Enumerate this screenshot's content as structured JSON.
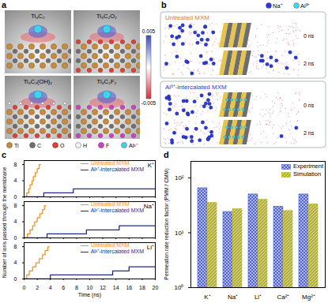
{
  "panels": {
    "a": {
      "panel_label": "a",
      "structures": [
        "Ti₃C₂",
        "Ti₃C₂O₂",
        "Ti₃C₂(OH)₂",
        "Ti₃C₂F₂"
      ],
      "colorbar": {
        "range": [
          -0.005,
          0.005
        ],
        "ticks": [
          0.005,
          -0.005
        ]
      },
      "legend": [
        {
          "name": "Ti",
          "color": "#c98a3a"
        },
        {
          "name": "C",
          "color": "#6f6f6f"
        },
        {
          "name": "O",
          "color": "#e04030"
        },
        {
          "name": "H",
          "color": "#f4f4f4"
        },
        {
          "name": "F",
          "color": "#d040c0"
        },
        {
          "name": "Al³⁺",
          "color": "#40d4ec"
        }
      ]
    },
    "b": {
      "panel_label": "b",
      "legend": [
        {
          "name": "Na⁺",
          "color": "#2b3bd6"
        },
        {
          "name": "Al³⁺",
          "color": "#40d4ec"
        }
      ],
      "boxes": [
        {
          "title": "Untreated MXM",
          "color": "#e07b1f",
          "snapshots": [
            "0 ns",
            "2 ns"
          ]
        },
        {
          "title": "Al³⁺-intercalated MXM",
          "color": "#2b3bd6",
          "snapshots": [
            "0 ns",
            "2 ns"
          ]
        }
      ]
    }
  },
  "chart_data": [
    {
      "panel_label": "c",
      "type": "line",
      "line_style": "step",
      "xlabel": "Time (ns)",
      "ylabel": "Number of ions passed through the membrane",
      "xlim": [
        0,
        20
      ],
      "xticks": [
        0,
        2,
        4,
        6,
        8,
        10,
        12,
        14,
        16,
        18,
        20
      ],
      "ylim": [
        0,
        9
      ],
      "yticks": [
        0,
        4,
        8
      ],
      "legend": "upper right",
      "subplots": [
        {
          "title": "K⁺",
          "series": [
            {
              "name": "Untreated MXM",
              "color": "#f5921e",
              "x": [
                0,
                0.4,
                0.7,
                0.9,
                1.2,
                1.4,
                1.7,
                2.0,
                2.3,
                2.5
              ],
              "values": [
                0,
                1,
                2,
                3,
                4,
                5,
                6,
                7,
                8,
                8
              ]
            },
            {
              "name": "Al³⁺-intercalated MXM",
              "color": "#1c2c8c",
              "x": [
                0,
                3.0,
                7.5,
                20
              ],
              "values": [
                0,
                1,
                2,
                2
              ]
            }
          ]
        },
        {
          "title": "Na⁺",
          "series": [
            {
              "name": "Untreated MXM",
              "color": "#f5921e",
              "x": [
                0,
                0.5,
                0.9,
                1.3,
                1.6,
                2.0,
                2.4,
                2.8,
                3.1,
                3.3
              ],
              "values": [
                0,
                1,
                2,
                3,
                4,
                5,
                6,
                7,
                8,
                8
              ]
            },
            {
              "name": "Al³⁺-intercalated MXM",
              "color": "#1c2c8c",
              "x": [
                0,
                3.5,
                9.5,
                14.5,
                20
              ],
              "values": [
                0,
                1,
                2,
                3,
                3
              ]
            }
          ]
        },
        {
          "title": "Li⁺",
          "series": [
            {
              "name": "Untreated MXM",
              "color": "#f5921e",
              "x": [
                0,
                0.4,
                0.8,
                1.3,
                1.8,
                2.3,
                2.8,
                3.2,
                3.6,
                3.8
              ],
              "values": [
                0,
                1,
                2,
                3,
                4,
                5,
                6,
                7,
                8,
                8
              ]
            },
            {
              "name": "Al³⁺-intercalated MXM",
              "color": "#1c2c8c",
              "x": [
                0,
                4.0,
                13.5,
                16.0,
                20
              ],
              "values": [
                0,
                1,
                2,
                3,
                3
              ]
            }
          ]
        }
      ]
    },
    {
      "panel_label": "d",
      "type": "bar",
      "log": "y",
      "ylabel": "Permeation rate reduction factor (PMM / CMM)",
      "categories": [
        "K⁺",
        "Na⁺",
        "Li⁺",
        "Ca²⁺",
        "Mg²⁺"
      ],
      "series": [
        {
          "name": "Experiment",
          "color": "#4f62d0",
          "values": [
            65,
            24,
            50,
            30,
            50
          ]
        },
        {
          "name": "Simulation",
          "color": "#b5b52a",
          "values": [
            35,
            27,
            40,
            25,
            33
          ]
        }
      ],
      "ylim": [
        1,
        200
      ],
      "yticks": [
        {
          "value": 1,
          "label": "10⁰"
        },
        {
          "value": 10,
          "label": "10¹"
        },
        {
          "value": 100,
          "label": "10²"
        }
      ],
      "legend": "upper right"
    }
  ]
}
